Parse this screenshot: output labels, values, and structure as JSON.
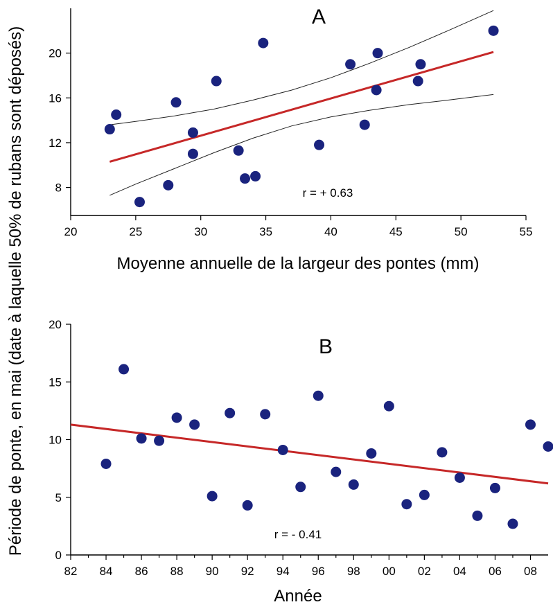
{
  "shared_ylabel": "Période de ponte, en mai  (date à laquelle 50% de rubans sont déposés)",
  "colors": {
    "points": "#1a237e",
    "regression": "#c62828",
    "ci": "#222222"
  },
  "chart_data": [
    {
      "type": "scatter",
      "panel": "A",
      "xlabel": "Moyenne annuelle de la largeur des pontes (mm)",
      "xlim": [
        20,
        55
      ],
      "ylim": [
        5.5,
        24
      ],
      "xticks": [
        "20",
        "25",
        "30",
        "35",
        "40",
        "45",
        "50",
        "55"
      ],
      "yticks": [
        "8",
        "12",
        "16",
        "20"
      ],
      "annotation": "r = + 0.63",
      "regression": {
        "x": [
          23.0,
          52.5
        ],
        "y": [
          10.3,
          20.1
        ]
      },
      "ci_upper": {
        "x": [
          23.0,
          25,
          28,
          31,
          34,
          37,
          40,
          43,
          46,
          49,
          52.5
        ],
        "y": [
          13.6,
          13.9,
          14.4,
          15.0,
          15.8,
          16.7,
          17.8,
          19.1,
          20.5,
          22.0,
          23.8
        ]
      },
      "ci_lower": {
        "x": [
          23.0,
          25,
          28,
          31,
          34,
          37,
          40,
          43,
          46,
          49,
          52.5
        ],
        "y": [
          7.3,
          8.3,
          9.7,
          11.1,
          12.4,
          13.5,
          14.3,
          14.9,
          15.4,
          15.8,
          16.3
        ]
      },
      "points": [
        {
          "x": 23.0,
          "y": 13.2
        },
        {
          "x": 23.5,
          "y": 14.5
        },
        {
          "x": 25.3,
          "y": 6.7
        },
        {
          "x": 27.5,
          "y": 8.2
        },
        {
          "x": 28.1,
          "y": 15.6
        },
        {
          "x": 29.4,
          "y": 12.9
        },
        {
          "x": 29.4,
          "y": 11.0
        },
        {
          "x": 31.2,
          "y": 17.5
        },
        {
          "x": 32.9,
          "y": 11.3
        },
        {
          "x": 33.4,
          "y": 8.8
        },
        {
          "x": 34.2,
          "y": 9.0
        },
        {
          "x": 34.8,
          "y": 20.9
        },
        {
          "x": 39.1,
          "y": 11.8
        },
        {
          "x": 41.5,
          "y": 19.0
        },
        {
          "x": 42.6,
          "y": 13.6
        },
        {
          "x": 43.5,
          "y": 16.7
        },
        {
          "x": 43.6,
          "y": 20.0
        },
        {
          "x": 46.7,
          "y": 17.5
        },
        {
          "x": 46.9,
          "y": 19.0
        },
        {
          "x": 52.5,
          "y": 22.0
        }
      ]
    },
    {
      "type": "scatter",
      "panel": "B",
      "xlabel": "Année",
      "xlim": [
        1982,
        2009
      ],
      "ylim": [
        0,
        20
      ],
      "xticks": [
        "82",
        "84",
        "86",
        "88",
        "90",
        "92",
        "94",
        "96",
        "98",
        "00",
        "02",
        "04",
        "06",
        "08"
      ],
      "yticks": [
        "0",
        "5",
        "10",
        "15",
        "20"
      ],
      "annotation": "r = - 0.41",
      "regression": {
        "x": [
          1982,
          2009
        ],
        "y": [
          11.3,
          6.2
        ]
      },
      "points": [
        {
          "x": 1984,
          "y": 7.9
        },
        {
          "x": 1985,
          "y": 16.1
        },
        {
          "x": 1986,
          "y": 10.1
        },
        {
          "x": 1987,
          "y": 9.9
        },
        {
          "x": 1988,
          "y": 11.9
        },
        {
          "x": 1989,
          "y": 11.3
        },
        {
          "x": 1990,
          "y": 5.1
        },
        {
          "x": 1991,
          "y": 12.3
        },
        {
          "x": 1992,
          "y": 4.3
        },
        {
          "x": 1993,
          "y": 12.2
        },
        {
          "x": 1994,
          "y": 9.1
        },
        {
          "x": 1995,
          "y": 5.9
        },
        {
          "x": 1996,
          "y": 13.8
        },
        {
          "x": 1997,
          "y": 7.2
        },
        {
          "x": 1998,
          "y": 6.1
        },
        {
          "x": 1999,
          "y": 8.8
        },
        {
          "x": 2000,
          "y": 12.9
        },
        {
          "x": 2001,
          "y": 4.4
        },
        {
          "x": 2002,
          "y": 5.2
        },
        {
          "x": 2003,
          "y": 8.9
        },
        {
          "x": 2004,
          "y": 6.7
        },
        {
          "x": 2005,
          "y": 3.4
        },
        {
          "x": 2006,
          "y": 5.8
        },
        {
          "x": 2007,
          "y": 2.7
        },
        {
          "x": 2008,
          "y": 11.3
        },
        {
          "x": 2009,
          "y": 9.4
        }
      ]
    }
  ]
}
